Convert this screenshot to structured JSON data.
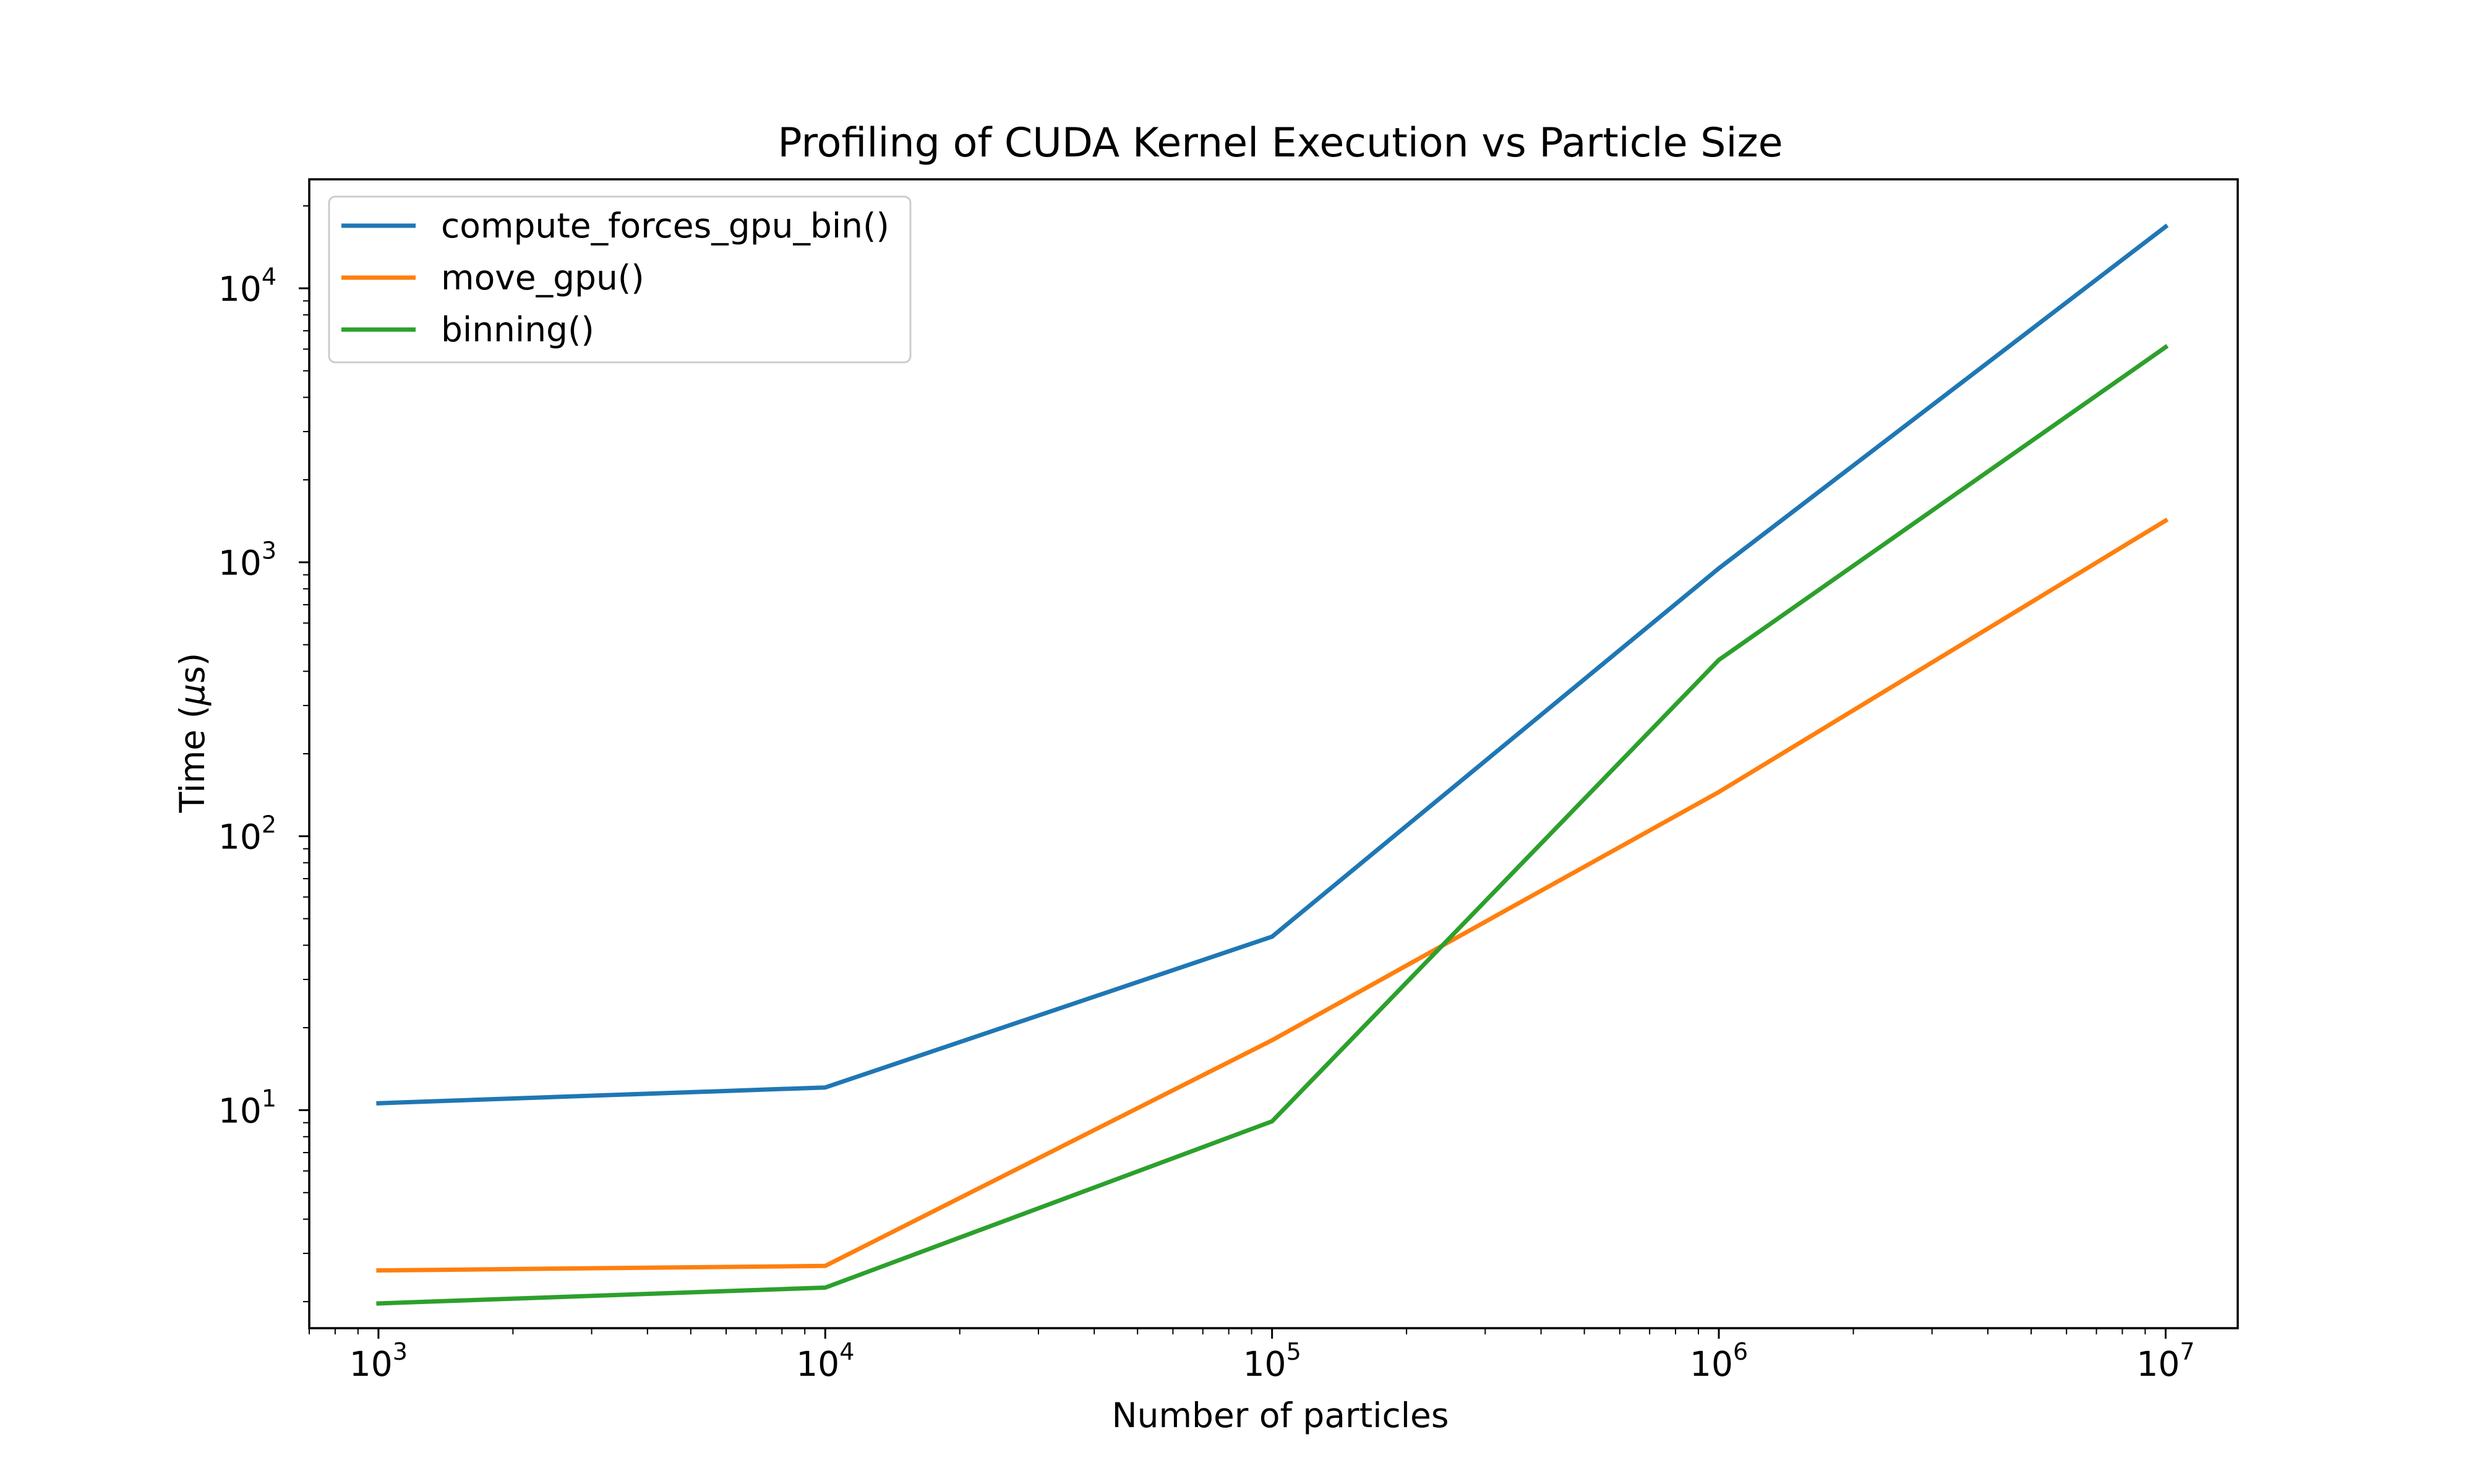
{
  "chart_data": {
    "type": "line",
    "title": "Profiling of CUDA Kernel Execution vs Particle Size",
    "xlabel": "Number of particles",
    "ylabel_prefix": "Time (",
    "ylabel_mu": "μ",
    "ylabel_unit": "s",
    "ylabel_suffix": ")",
    "x_scale": "log",
    "y_scale": "log",
    "xlim": [
      700,
      14500000
    ],
    "ylim": [
      1.6,
      25000
    ],
    "grid": false,
    "legend_position": "upper left",
    "x_ticks": [
      {
        "value": 1000,
        "base": "10",
        "exp": "3"
      },
      {
        "value": 10000,
        "base": "10",
        "exp": "4"
      },
      {
        "value": 100000,
        "base": "10",
        "exp": "5"
      },
      {
        "value": 1000000,
        "base": "10",
        "exp": "6"
      },
      {
        "value": 10000000,
        "base": "10",
        "exp": "7"
      }
    ],
    "y_ticks": [
      {
        "value": 10,
        "base": "10",
        "exp": "1"
      },
      {
        "value": 100,
        "base": "10",
        "exp": "2"
      },
      {
        "value": 1000,
        "base": "10",
        "exp": "3"
      },
      {
        "value": 10000,
        "base": "10",
        "exp": "4"
      }
    ],
    "x": [
      1000,
      10000,
      100000,
      1000000,
      10000000
    ],
    "series": [
      {
        "name": "compute_forces_gpu_bin()",
        "color": "#1f77b4",
        "values": [
          10.6,
          12.1,
          43,
          950,
          16800
        ]
      },
      {
        "name": "move_gpu()",
        "color": "#ff7f0e",
        "values": [
          2.6,
          2.7,
          18,
          145,
          1420
        ]
      },
      {
        "name": "binning()",
        "color": "#2ca02c",
        "values": [
          1.97,
          2.25,
          9.1,
          440,
          6100
        ]
      }
    ]
  }
}
